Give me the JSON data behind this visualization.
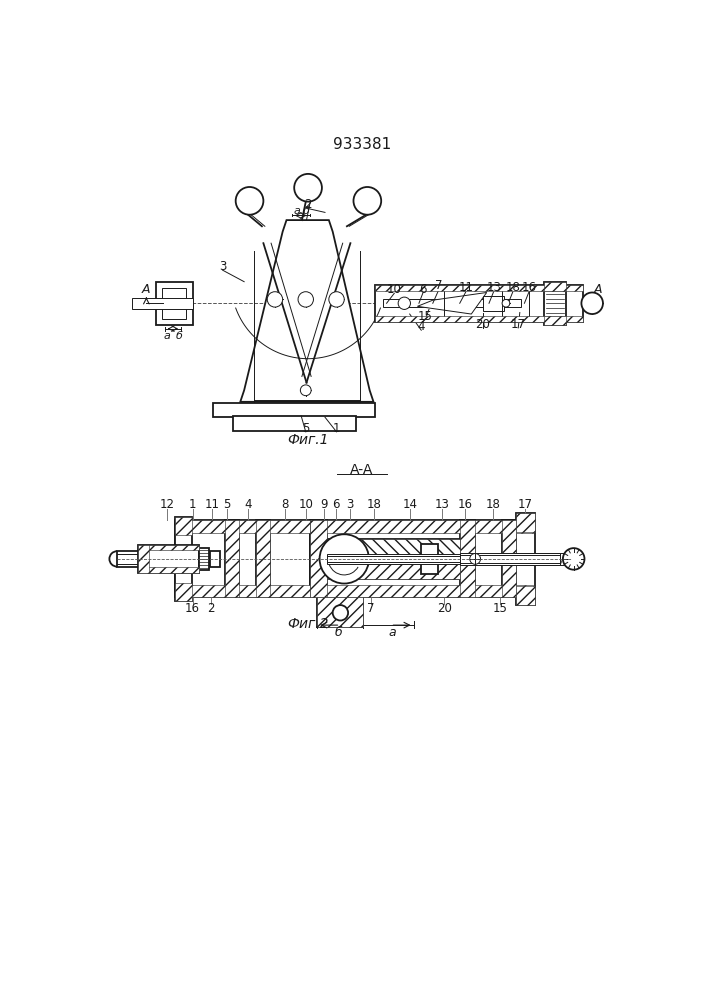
{
  "title": "933381",
  "fig1_label": "Фиг.1",
  "fig2_label": "Фиг.2",
  "section_label": "A-A",
  "bg_color": "#ffffff",
  "line_color": "#1a1a1a"
}
